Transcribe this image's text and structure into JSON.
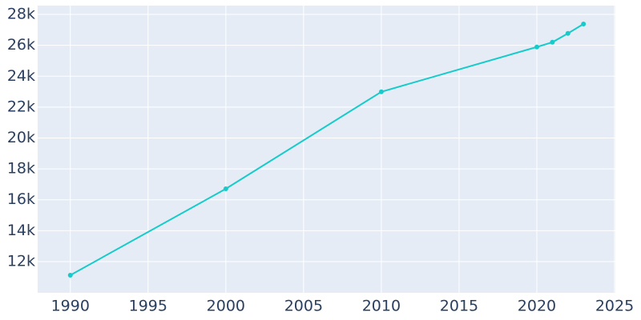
{
  "chart_data": {
    "type": "line",
    "x": [
      1990,
      2000,
      2010,
      2020,
      2021,
      2022,
      2023
    ],
    "series": [
      {
        "color": "#17cbcb",
        "values": [
          11120,
          16710,
          22990,
          25890,
          26200,
          26770,
          27380
        ]
      }
    ],
    "xlim": [
      1987.9,
      2025.05
    ],
    "xticks": [
      1990,
      1995,
      2000,
      2005,
      2010,
      2015,
      2020,
      2025
    ],
    "ylim": [
      9980,
      28570
    ],
    "yticks": [
      {
        "value": 12000,
        "label": "12k"
      },
      {
        "value": 14000,
        "label": "14k"
      },
      {
        "value": 16000,
        "label": "16k"
      },
      {
        "value": 18000,
        "label": "18k"
      },
      {
        "value": 20000,
        "label": "20k"
      },
      {
        "value": 22000,
        "label": "22k"
      },
      {
        "value": 24000,
        "label": "24k"
      },
      {
        "value": 26000,
        "label": "26k"
      },
      {
        "value": 28000,
        "label": "28k"
      }
    ],
    "grid": true,
    "plot_background": "#e5ecf6"
  }
}
